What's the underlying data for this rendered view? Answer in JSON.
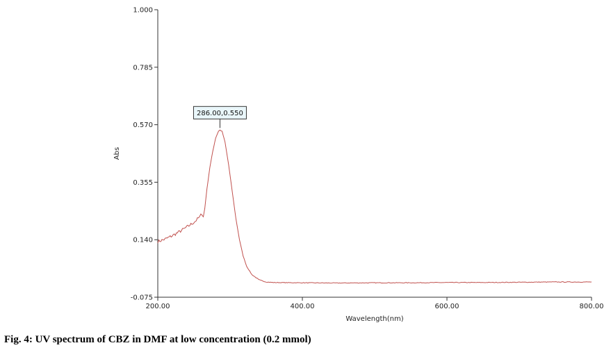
{
  "chart_data": {
    "type": "line",
    "title": "",
    "xlabel": "Wavelength(nm)",
    "ylabel": "Abs",
    "xlim": [
      200,
      800
    ],
    "ylim": [
      -0.075,
      1.0
    ],
    "x_ticks": [
      "200.00",
      "400.00",
      "600.00",
      "800.00"
    ],
    "y_ticks": [
      "1.000",
      "0.785",
      "0.570",
      "0.355",
      "0.140",
      "-0.075"
    ],
    "grid": false,
    "line_color": "#c0504d",
    "annotation": {
      "label": "286.00,0.550",
      "x": 286.0,
      "y": 0.55
    },
    "series": [
      {
        "values": [
          [
            200,
            0.133
          ],
          [
            210,
            0.142
          ],
          [
            220,
            0.155
          ],
          [
            230,
            0.17
          ],
          [
            240,
            0.187
          ],
          [
            250,
            0.205
          ],
          [
            258,
            0.225
          ],
          [
            261,
            0.238
          ],
          [
            263,
            0.225
          ],
          [
            265,
            0.258
          ],
          [
            268,
            0.33
          ],
          [
            272,
            0.41
          ],
          [
            276,
            0.47
          ],
          [
            280,
            0.52
          ],
          [
            284,
            0.546
          ],
          [
            286,
            0.55
          ],
          [
            289,
            0.545
          ],
          [
            293,
            0.505
          ],
          [
            298,
            0.42
          ],
          [
            303,
            0.32
          ],
          [
            308,
            0.22
          ],
          [
            313,
            0.14
          ],
          [
            318,
            0.08
          ],
          [
            323,
            0.04
          ],
          [
            330,
            0.01
          ],
          [
            340,
            -0.01
          ],
          [
            350,
            -0.018
          ],
          [
            360,
            -0.02
          ],
          [
            400,
            -0.021
          ],
          [
            450,
            -0.022
          ],
          [
            500,
            -0.021
          ],
          [
            550,
            -0.021
          ],
          [
            600,
            -0.02
          ],
          [
            650,
            -0.02
          ],
          [
            700,
            -0.019
          ],
          [
            750,
            -0.018
          ],
          [
            800,
            -0.018
          ]
        ]
      }
    ]
  },
  "caption": "Fig. 4: UV spectrum of CBZ in DMF at low concentration (0.2 mmol)"
}
